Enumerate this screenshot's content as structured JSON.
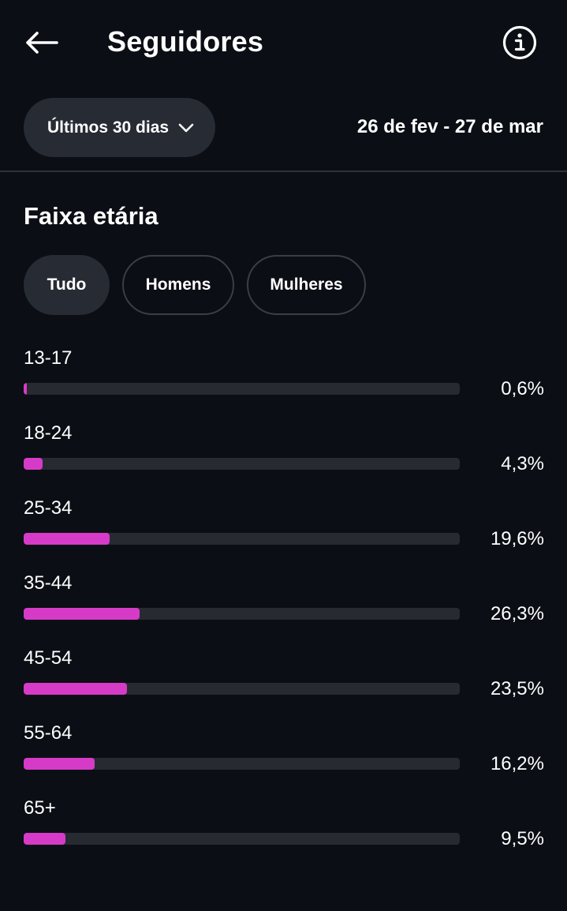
{
  "header": {
    "title": "Seguidores",
    "back_icon": "arrow-left-icon",
    "info_icon": "info-circle-icon"
  },
  "filter": {
    "period_label": "Últimos 30 dias",
    "date_range": "26 de fev - 27 de mar"
  },
  "section": {
    "title": "Faixa etária"
  },
  "segments": [
    {
      "label": "Tudo",
      "selected": true
    },
    {
      "label": "Homens",
      "selected": false
    },
    {
      "label": "Mulheres",
      "selected": false
    }
  ],
  "colors": {
    "accent": "#d63bc8",
    "background": "#0b0e14",
    "track": "#272a31"
  },
  "age_groups": [
    {
      "label": "13-17",
      "value": 0.6,
      "display": "0,6%"
    },
    {
      "label": "18-24",
      "value": 4.3,
      "display": "4,3%"
    },
    {
      "label": "25-34",
      "value": 19.6,
      "display": "19,6%"
    },
    {
      "label": "35-44",
      "value": 26.3,
      "display": "26,3%"
    },
    {
      "label": "45-54",
      "value": 23.5,
      "display": "23,5%"
    },
    {
      "label": "55-64",
      "value": 16.2,
      "display": "16,2%"
    },
    {
      "label": "65+",
      "value": 9.5,
      "display": "9,5%"
    }
  ]
}
